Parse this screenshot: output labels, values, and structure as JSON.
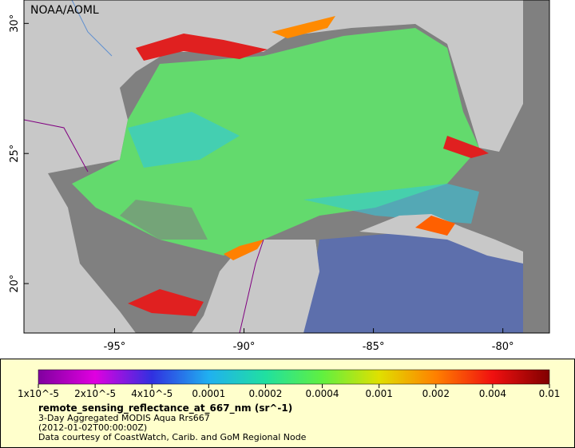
{
  "map": {
    "source_label": "NOAA/AOML",
    "lon_range": [
      -98.5,
      -78.2
    ],
    "lat_range": [
      18.1,
      30.9
    ],
    "lon_ticks": [
      {
        "value": -95,
        "label": "-95°"
      },
      {
        "value": -90,
        "label": "-90°"
      },
      {
        "value": -85,
        "label": "-85°"
      },
      {
        "value": -80,
        "label": "-80°"
      }
    ],
    "lat_ticks": [
      {
        "value": 20,
        "label": "20°"
      },
      {
        "value": 25,
        "label": "25°"
      },
      {
        "value": 30,
        "label": "30°"
      }
    ]
  },
  "legend": {
    "colorbar": {
      "colors": [
        "#80009f",
        "#e000e0",
        "#3030e0",
        "#20b0f0",
        "#20e0a0",
        "#60f040",
        "#e0e000",
        "#ff8000",
        "#f01010",
        "#800000"
      ],
      "ticks": [
        {
          "value": 1e-05,
          "label": "1x10^-5"
        },
        {
          "value": 2e-05,
          "label": "2x10^-5"
        },
        {
          "value": 4e-05,
          "label": "4x10^-5"
        },
        0.0001,
        0.0002,
        0.0004,
        0.001,
        0.002,
        0.004,
        0.01
      ]
    },
    "variable": "remote_sensing_reflectance_at_667_nm (sr^-1)",
    "dataset": "3-Day Aggregated MODIS Aqua Rrs667",
    "time": "(2012-01-02T00:00:00Z)",
    "credit": "Data courtesy of CoastWatch, Carib. and GoM Regional Node"
  }
}
